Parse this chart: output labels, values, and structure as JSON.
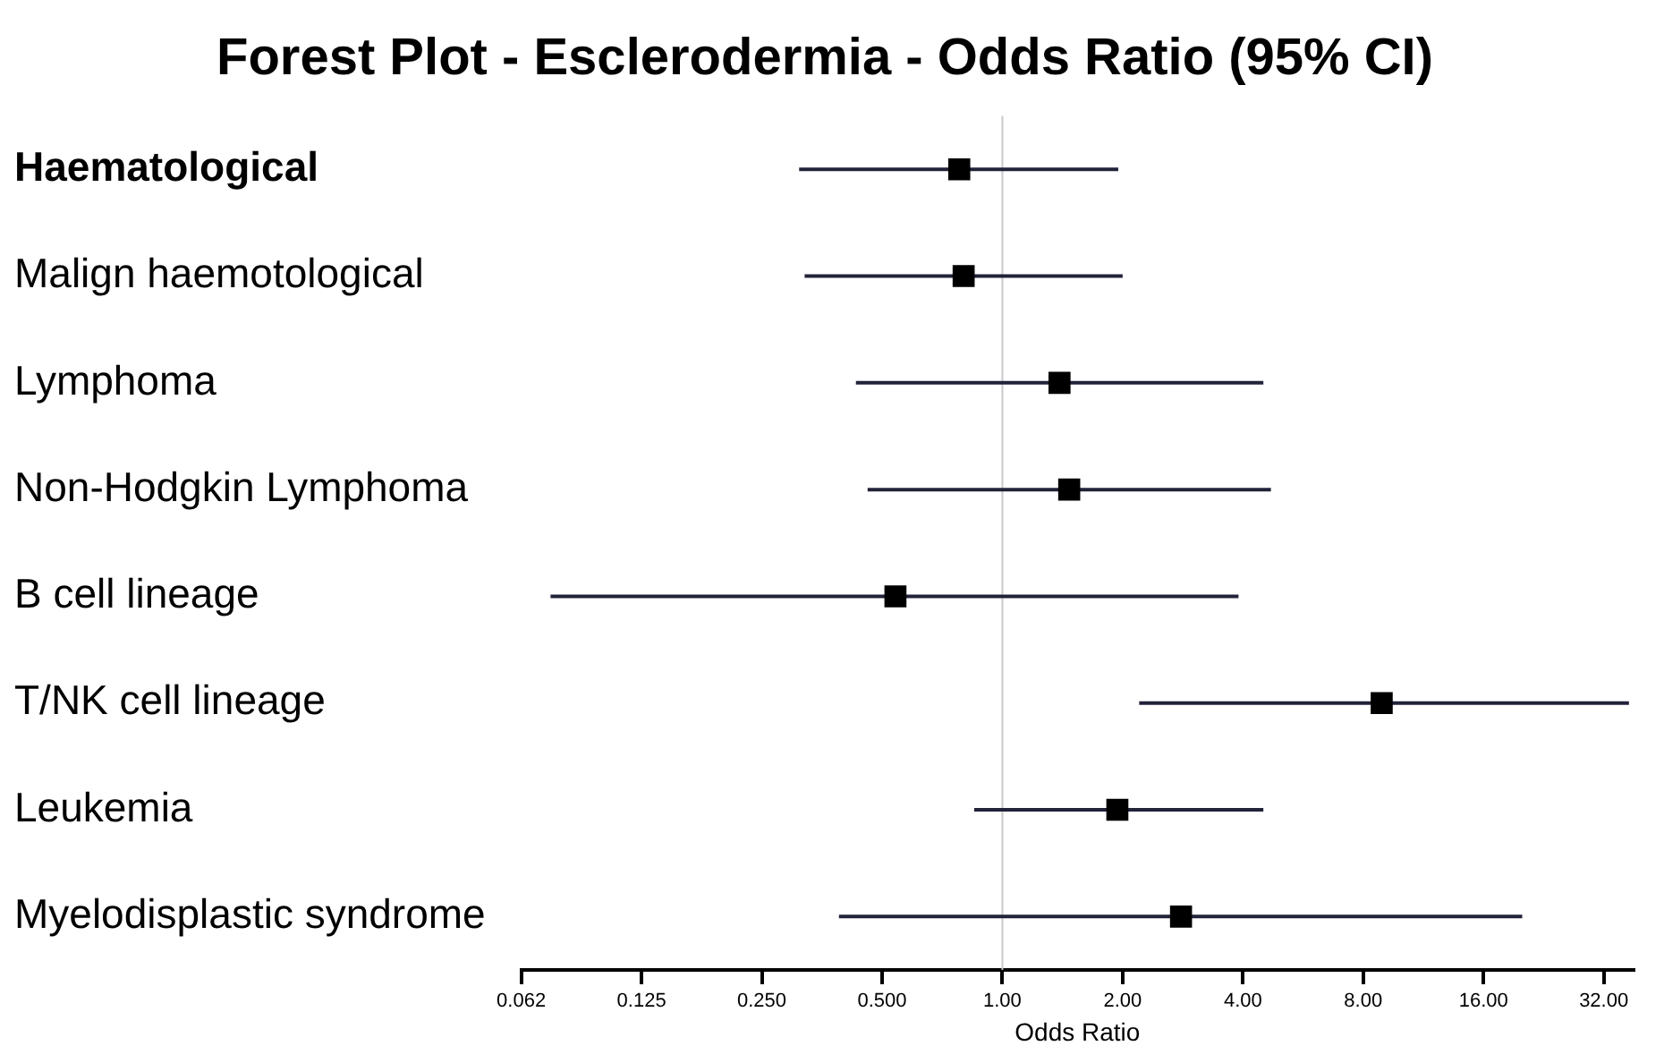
{
  "chart_data": {
    "type": "scatter",
    "orientation": "horizontal",
    "title": "Forest Plot - Esclerodermia - Odds Ratio (95% CI)",
    "xlabel": "Odds Ratio",
    "categories": [
      "Haematological",
      "Malign haemotological",
      "Lymphoma",
      "Non-Hodgkin Lymphoma",
      "B cell lineage",
      "T/NK cell lineage",
      "Leukemia",
      "Myelodisplastic syndrome"
    ],
    "values": [
      0.78,
      0.8,
      1.39,
      1.47,
      0.54,
      8.9,
      1.94,
      2.8
    ],
    "errors": [
      [
        0.31,
        1.95
      ],
      [
        0.32,
        2.0
      ],
      [
        0.43,
        4.5
      ],
      [
        0.46,
        4.7
      ],
      [
        0.074,
        3.9
      ],
      [
        2.2,
        37
      ],
      [
        0.85,
        4.5
      ],
      [
        0.39,
        20
      ]
    ],
    "color": "#000000",
    "marker": "square",
    "log": "x",
    "grid": false,
    "legend": false,
    "xlim": [
      0.0625,
      38
    ],
    "xticks": [
      {
        "value": 0.0625,
        "label": "0.062"
      },
      0.125,
      {
        "value": 0.25,
        "label": "0.250"
      },
      {
        "value": 0.5,
        "label": "0.500"
      },
      {
        "value": 1,
        "label": "1.00"
      },
      {
        "value": 2,
        "label": "2.00"
      },
      {
        "value": 4,
        "label": "4.00"
      },
      {
        "value": 8,
        "label": "8.00"
      },
      {
        "value": 16,
        "label": "16.00"
      },
      {
        "value": 32,
        "label": "32.00"
      }
    ],
    "ref_lines": [
      {
        "axis": "x",
        "value": 1,
        "color": "#c8c8c8"
      }
    ]
  }
}
